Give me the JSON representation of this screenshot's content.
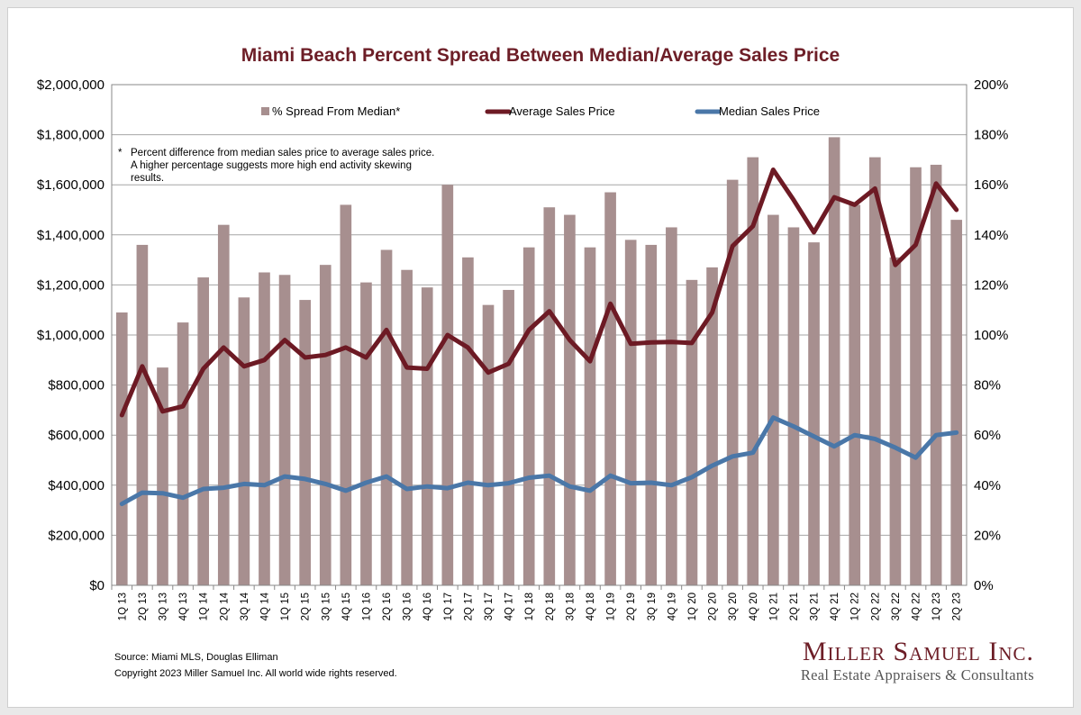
{
  "title": "Miami Beach Percent Spread Between Median/Average Sales Price",
  "note": {
    "asterisk": "*",
    "text": "Percent difference from median sales price to average sales price. A higher percentage suggests more high end activity skewing results."
  },
  "source": "Source: Miami MLS, Douglas Elliman",
  "copyright": "Copyright 2023 Miller Samuel Inc.  All world wide rights reserved.",
  "brand": {
    "name": "Miller Samuel Inc.",
    "tagline": "Real Estate Appraisers & Consultants"
  },
  "colors": {
    "title": "#6d1e27",
    "bars": "#a78f8f",
    "average": "#6d1a24",
    "median": "#4a77a8",
    "grid": "#a6a6a6"
  },
  "chart_data": {
    "type": "bar",
    "title": "Miami Beach Percent Spread Between Median/Average Sales Price",
    "categories": [
      "1Q 13",
      "2Q 13",
      "3Q 13",
      "4Q 13",
      "1Q 14",
      "2Q 14",
      "3Q 14",
      "4Q 14",
      "1Q 15",
      "2Q 15",
      "3Q 15",
      "4Q 15",
      "1Q 16",
      "2Q 16",
      "3Q 16",
      "4Q 16",
      "1Q 17",
      "2Q 17",
      "3Q 17",
      "4Q 17",
      "1Q 18",
      "2Q 18",
      "3Q 18",
      "4Q 18",
      "1Q 19",
      "2Q 19",
      "3Q 19",
      "4Q 19",
      "1Q 20",
      "2Q 20",
      "3Q 20",
      "4Q 20",
      "1Q 21",
      "2Q 21",
      "3Q 21",
      "4Q 21",
      "1Q 22",
      "2Q 22",
      "3Q 22",
      "4Q 22",
      "1Q 23",
      "2Q 23"
    ],
    "y_left": {
      "ylim": [
        0,
        2000000
      ],
      "ticks": [
        0,
        200000,
        400000,
        600000,
        800000,
        1000000,
        1200000,
        1400000,
        1600000,
        1800000,
        2000000
      ],
      "tick_labels": [
        "$0",
        "$200,000",
        "$400,000",
        "$600,000",
        "$800,000",
        "$1,000,000",
        "$1,200,000",
        "$1,400,000",
        "$1,600,000",
        "$1,800,000",
        "$2,000,000"
      ]
    },
    "y_right": {
      "ylim": [
        0,
        200
      ],
      "ticks": [
        0,
        20,
        40,
        60,
        80,
        100,
        120,
        140,
        160,
        180,
        200
      ],
      "tick_labels": [
        "0%",
        "20%",
        "40%",
        "60%",
        "80%",
        "100%",
        "120%",
        "140%",
        "160%",
        "180%",
        "200%"
      ]
    },
    "grid": true,
    "legend_position": "top",
    "series": [
      {
        "name": "% Spread From Median*",
        "type": "bar",
        "axis": "right",
        "values": [
          109,
          136,
          87,
          105,
          123,
          144,
          115,
          125,
          124,
          114,
          128,
          152,
          121,
          134,
          126,
          119,
          160,
          131,
          112,
          118,
          135,
          151,
          148,
          135,
          157,
          138,
          136,
          143,
          122,
          127,
          162,
          171,
          148,
          143,
          137,
          179,
          152,
          171,
          131,
          167,
          168,
          146
        ]
      },
      {
        "name": "Average Sales Price",
        "type": "line",
        "axis": "left",
        "values": [
          680000,
          875000,
          695000,
          715000,
          865000,
          950000,
          875000,
          900000,
          980000,
          910000,
          920000,
          950000,
          910000,
          1020000,
          870000,
          865000,
          1000000,
          950000,
          850000,
          885000,
          1020000,
          1095000,
          980000,
          895000,
          1125000,
          965000,
          970000,
          972000,
          968000,
          1090000,
          1355000,
          1435000,
          1660000,
          1540000,
          1410000,
          1550000,
          1520000,
          1585000,
          1280000,
          1360000,
          1605000,
          1500000
        ]
      },
      {
        "name": "Median Sales Price",
        "type": "line",
        "axis": "left",
        "values": [
          325000,
          370000,
          368000,
          350000,
          385000,
          390000,
          405000,
          400000,
          435000,
          425000,
          405000,
          378000,
          410000,
          435000,
          385000,
          395000,
          388000,
          410000,
          400000,
          408000,
          430000,
          438000,
          395000,
          378000,
          438000,
          408000,
          410000,
          400000,
          432000,
          478000,
          515000,
          530000,
          670000,
          635000,
          595000,
          555000,
          600000,
          585000,
          550000,
          510000,
          600000,
          610000
        ]
      }
    ]
  }
}
